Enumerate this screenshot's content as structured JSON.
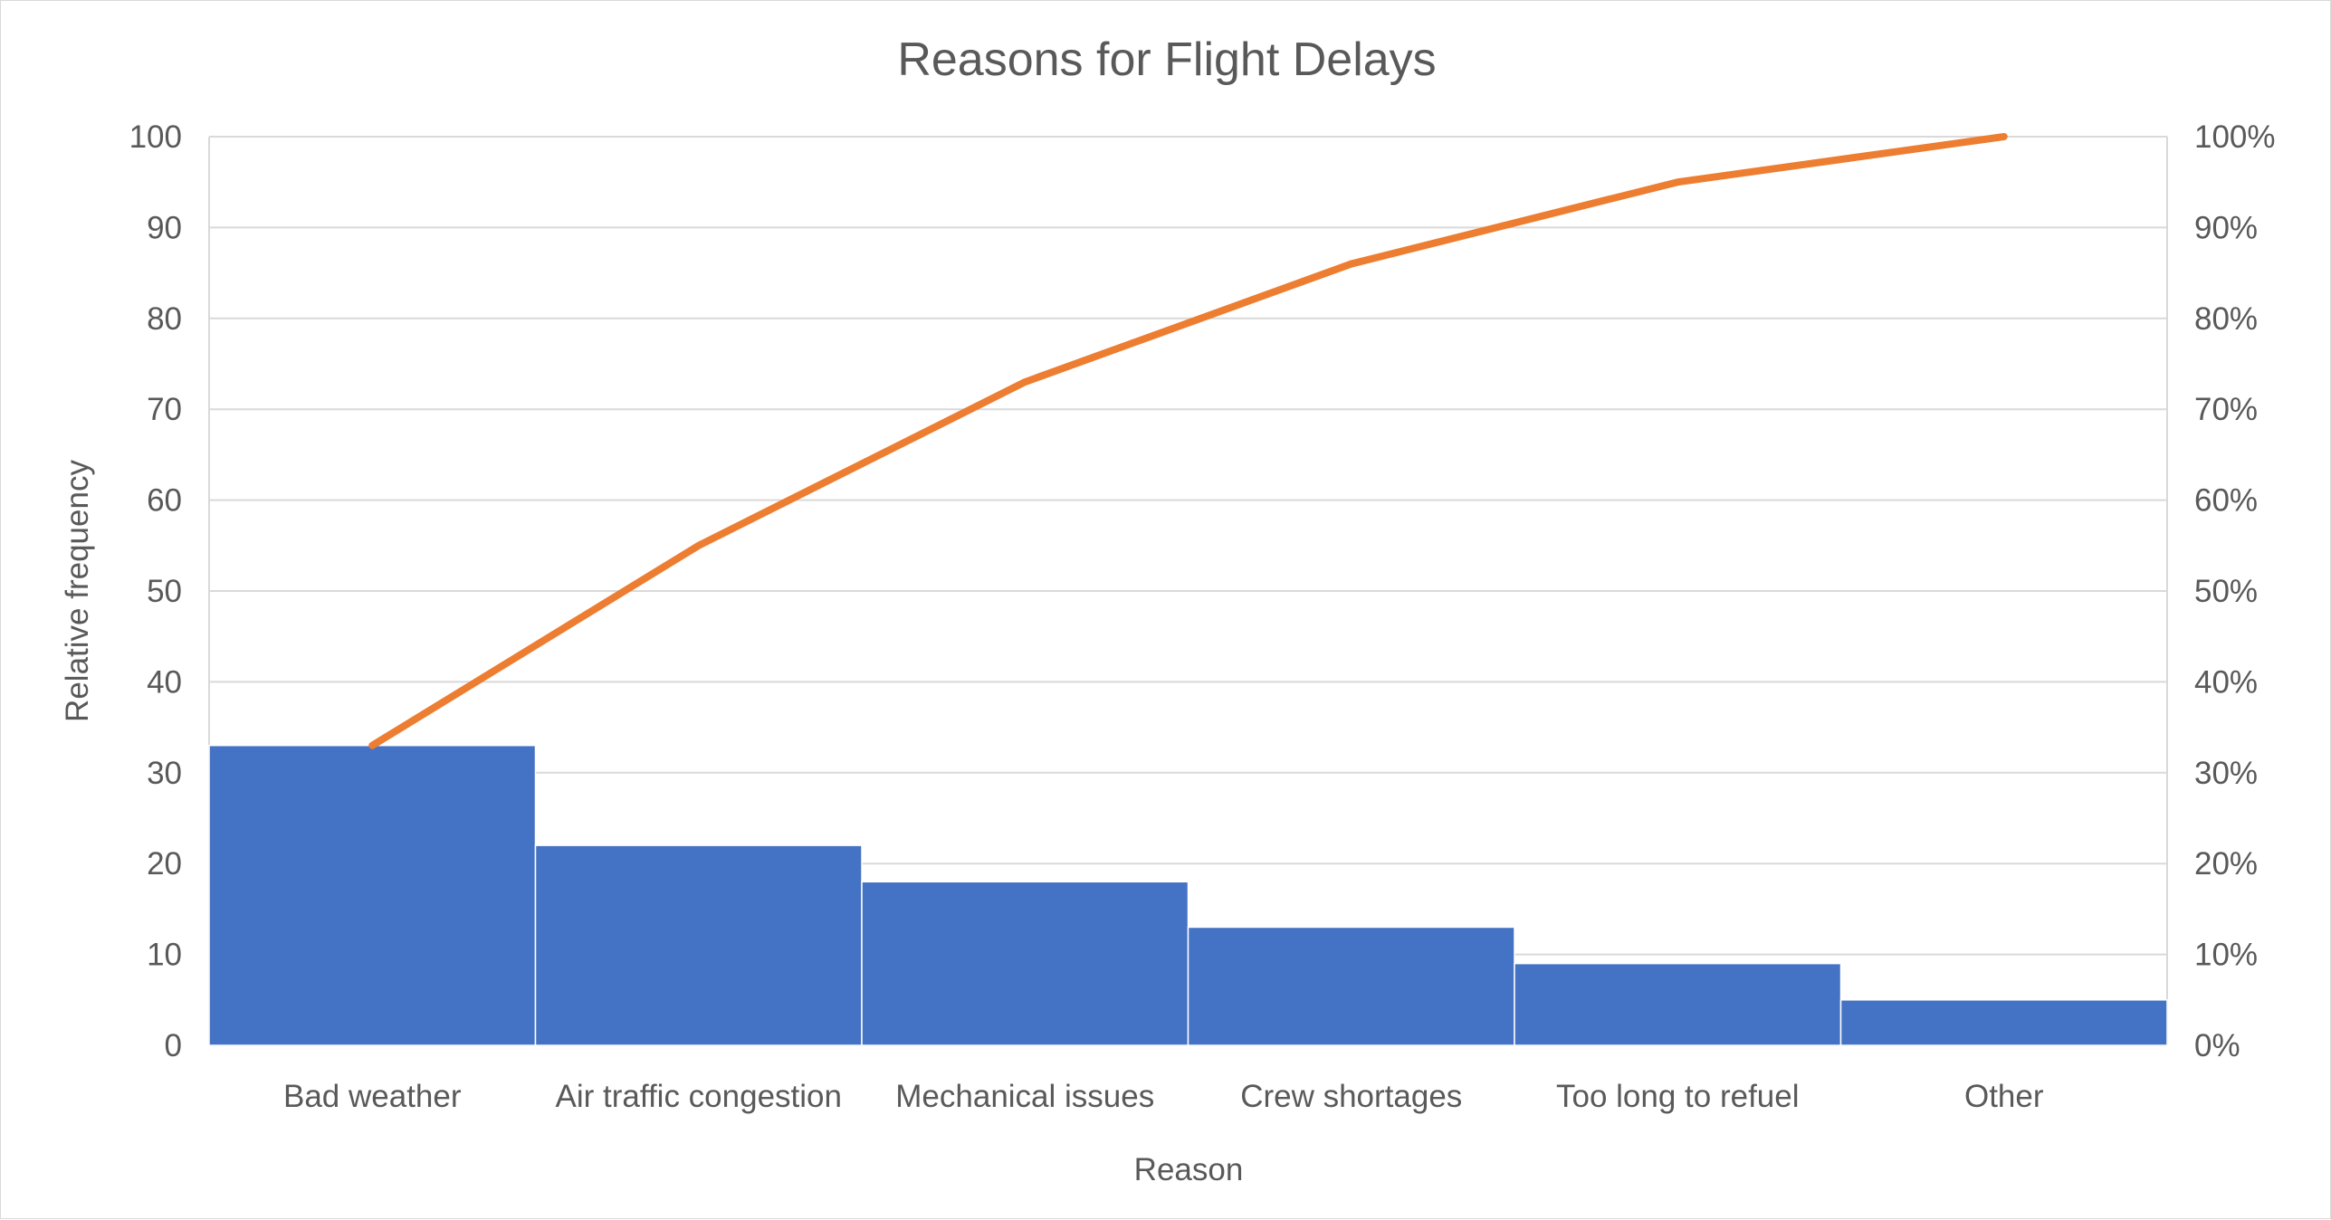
{
  "chart_data": {
    "type": "bar",
    "title": "Reasons for Flight Delays",
    "xlabel": "Reason",
    "ylabel": "Relative frequency",
    "categories": [
      "Bad weather",
      "Air traffic congestion",
      "Mechanical issues",
      "Crew shortages",
      "Too long to refuel",
      "Other"
    ],
    "series": [
      {
        "values": [
          33,
          22,
          18,
          13,
          9,
          5
        ],
        "color": "#4472c4"
      },
      {
        "values": [
          33,
          55,
          73,
          86,
          95,
          100
        ],
        "color": "#ed7d31",
        "type": "line",
        "axis": "right"
      }
    ],
    "ylim": [
      0,
      100
    ],
    "y_ticks": [
      "0",
      "10",
      "20",
      "30",
      "40",
      "50",
      "60",
      "70",
      "80",
      "90",
      "100"
    ],
    "y2lim": [
      0,
      100
    ],
    "y2_ticks": [
      "0%",
      "10%",
      "20%",
      "30%",
      "40%",
      "50%",
      "60%",
      "70%",
      "80%",
      "90%",
      "100%"
    ],
    "grid": true,
    "legend": "none",
    "gridline_color": "#d9d9d9",
    "text_color": "#595959"
  }
}
